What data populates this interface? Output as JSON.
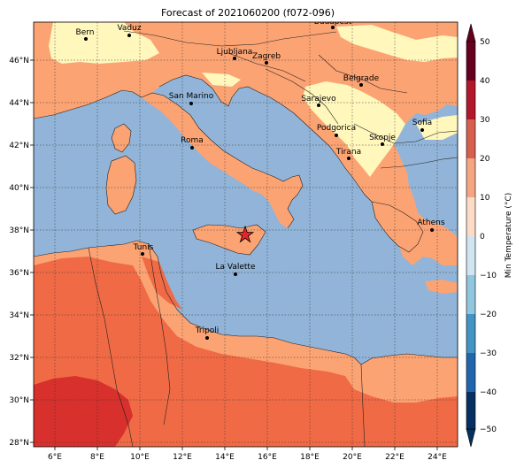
{
  "title": "Forecast of 2021060200 (f072-096)",
  "colorbar": {
    "label": "Min Temperature (°C)",
    "ticks": [
      "50",
      "40",
      "30",
      "20",
      "10",
      "0",
      "−10",
      "−20",
      "−30",
      "−40",
      "−50"
    ],
    "colors": [
      "#67001f",
      "#b2182b",
      "#d6604d",
      "#f4a582",
      "#fddbc7",
      "#fff7bc",
      "#d1e5f0",
      "#92c5de",
      "#4393c3",
      "#2166ac",
      "#053061"
    ]
  },
  "axes": {
    "lon_labels": [
      "6°E",
      "8°E",
      "10°E",
      "12°E",
      "14°E",
      "16°E",
      "18°E",
      "20°E",
      "22°E",
      "24°E"
    ],
    "lat_labels": [
      "46°N",
      "44°N",
      "42°N",
      "40°N",
      "38°N",
      "36°N",
      "34°N",
      "32°N",
      "30°N",
      "28°N"
    ]
  },
  "cities": [
    {
      "name": "Bern"
    },
    {
      "name": "Vaduz"
    },
    {
      "name": "Budapest"
    },
    {
      "name": "Ljubljana"
    },
    {
      "name": "Zagreb"
    },
    {
      "name": "Belgrade"
    },
    {
      "name": "San Marino"
    },
    {
      "name": "Sarajevo"
    },
    {
      "name": "Sofia"
    },
    {
      "name": "Podgorica"
    },
    {
      "name": "Skopje"
    },
    {
      "name": "Roma"
    },
    {
      "name": "Tirana"
    },
    {
      "name": "Athens"
    },
    {
      "name": "Tunis"
    },
    {
      "name": "La Valette"
    },
    {
      "name": "Tripoli"
    }
  ],
  "marker": {
    "icon": "star-marker-icon",
    "color": "#e4262c"
  },
  "fill_colors": {
    "sea": "#91b4d8",
    "land_warm": "#fca373",
    "land_mild": "#fff7bc",
    "land_hot": "#f06a45",
    "land_very_hot": "#d8302c"
  }
}
